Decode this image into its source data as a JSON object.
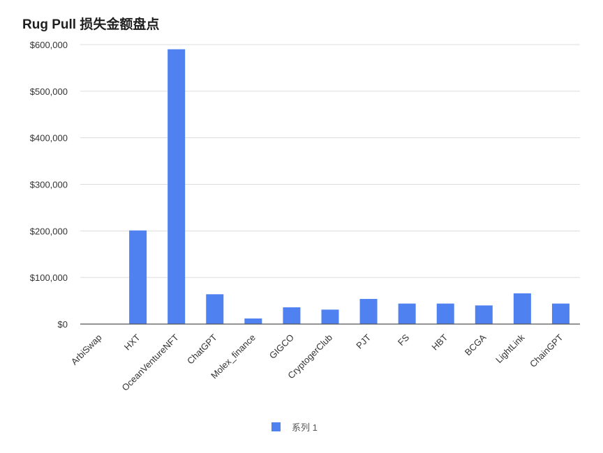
{
  "chart_data": {
    "type": "bar",
    "title": "Rug Pull 损失金额盘点",
    "categories": [
      "ArbiSwap",
      "HXT",
      "OceanVentureNFT",
      "ChatGPT",
      "Molex_finance",
      "GIGCO",
      "CryptogerClub",
      "PJT",
      "FS",
      "HBT",
      "BCGA",
      "LightLink",
      "ChainGPT"
    ],
    "series": [
      {
        "name": "系列 1",
        "color": "#4f81f0",
        "values": [
          0,
          201000,
          590000,
          64000,
          12000,
          36000,
          31000,
          54000,
          44000,
          44000,
          40000,
          66000,
          44000
        ]
      }
    ],
    "ylim": [
      0,
      600000
    ],
    "yticks": [
      {
        "value": 0,
        "label": "$0"
      },
      {
        "value": 100000,
        "label": "$100,000"
      },
      {
        "value": 200000,
        "label": "$200,000"
      },
      {
        "value": 300000,
        "label": "$300,000"
      },
      {
        "value": 400000,
        "label": "$400,000"
      },
      {
        "value": 500000,
        "label": "$500,000"
      },
      {
        "value": 600000,
        "label": "$600,000"
      }
    ],
    "xlabel": "",
    "ylabel": "",
    "grid": true,
    "legend_position": "bottom"
  }
}
